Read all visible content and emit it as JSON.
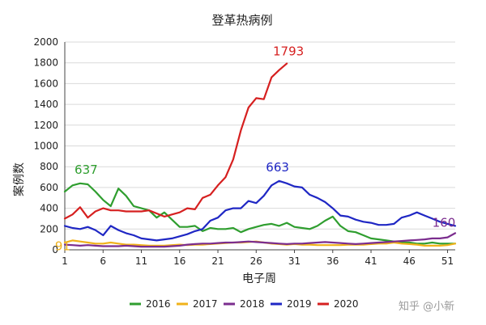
{
  "watermark": "知乎 @小新",
  "colors": {
    "2016": "#2f9e2f",
    "2017": "#f0b21a",
    "2018": "#7b2d8e",
    "2019": "#1f27c4",
    "2020": "#d62020"
  },
  "chart_data": {
    "type": "line",
    "title": "登革热病例",
    "xlabel": "电子周",
    "ylabel": "案例数",
    "xlim": [
      1,
      52
    ],
    "ylim": [
      0,
      2000
    ],
    "x_ticks": [
      1,
      6,
      11,
      16,
      21,
      26,
      31,
      36,
      41,
      46,
      51
    ],
    "y_ticks": [
      0,
      200,
      400,
      600,
      800,
      1000,
      1200,
      1400,
      1600,
      1800,
      2000
    ],
    "grid": true,
    "legend_position": "bottom",
    "series": [
      {
        "name": "2016",
        "color": "#2f9e2f",
        "values": [
          560,
          620,
          640,
          630,
          560,
          480,
          420,
          590,
          520,
          420,
          400,
          380,
          310,
          360,
          290,
          220,
          220,
          230,
          180,
          210,
          200,
          200,
          210,
          170,
          200,
          220,
          240,
          250,
          230,
          260,
          220,
          210,
          200,
          230,
          280,
          320,
          230,
          180,
          170,
          140,
          110,
          100,
          90,
          80,
          70,
          70,
          60,
          60,
          70,
          60,
          60,
          60
        ]
      },
      {
        "name": "2017",
        "color": "#f0b21a",
        "values": [
          70,
          90,
          80,
          70,
          60,
          60,
          70,
          60,
          50,
          50,
          45,
          40,
          40,
          40,
          45,
          50,
          45,
          50,
          50,
          55,
          60,
          65,
          70,
          70,
          75,
          80,
          70,
          60,
          55,
          50,
          55,
          50,
          50,
          45,
          45,
          45,
          45,
          50,
          50,
          50,
          55,
          60,
          60,
          70,
          60,
          55,
          50,
          40,
          40,
          40,
          45,
          60
        ]
      },
      {
        "name": "2018",
        "color": "#7b2d8e",
        "values": [
          50,
          45,
          40,
          45,
          40,
          35,
          35,
          35,
          40,
          35,
          30,
          30,
          30,
          30,
          35,
          40,
          50,
          55,
          60,
          60,
          65,
          70,
          70,
          75,
          80,
          75,
          70,
          65,
          60,
          55,
          60,
          60,
          65,
          70,
          75,
          70,
          65,
          60,
          55,
          60,
          65,
          70,
          75,
          80,
          85,
          90,
          95,
          100,
          110,
          110,
          120,
          160
        ]
      },
      {
        "name": "2019",
        "color": "#1f27c4",
        "values": [
          230,
          210,
          200,
          220,
          190,
          140,
          230,
          190,
          160,
          140,
          110,
          100,
          90,
          100,
          110,
          130,
          150,
          180,
          200,
          280,
          310,
          380,
          400,
          400,
          470,
          450,
          520,
          620,
          663,
          640,
          610,
          600,
          530,
          500,
          460,
          400,
          330,
          320,
          290,
          270,
          260,
          240,
          240,
          250,
          310,
          330,
          360,
          330,
          300,
          270,
          250,
          230
        ]
      },
      {
        "name": "2020",
        "color": "#d62020",
        "values": [
          300,
          340,
          410,
          310,
          370,
          400,
          380,
          380,
          370,
          370,
          370,
          380,
          350,
          320,
          340,
          360,
          400,
          390,
          500,
          530,
          620,
          700,
          870,
          1150,
          1370,
          1460,
          1450,
          1660,
          1730,
          1793
        ]
      }
    ],
    "annotations": [
      {
        "text": "637",
        "series": "2016",
        "x": 4,
        "y": 637
      },
      {
        "text": "91",
        "series": "2017",
        "x": 2,
        "y": 91
      },
      {
        "text": "663",
        "series": "2019",
        "x": 29,
        "y": 663
      },
      {
        "text": "1793",
        "series": "2020",
        "x": 30,
        "y": 1793
      },
      {
        "text": "160",
        "series": "2018",
        "x": 52,
        "y": 160
      }
    ]
  }
}
